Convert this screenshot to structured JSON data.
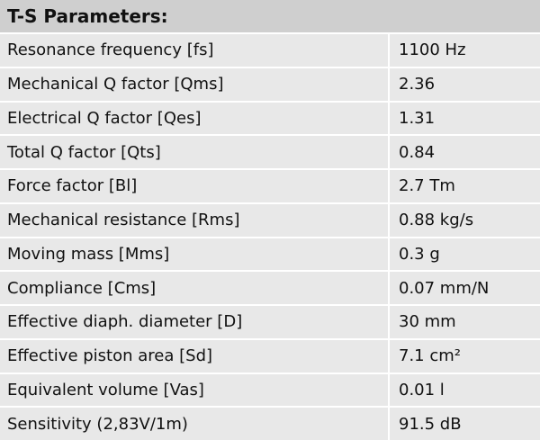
{
  "table": {
    "title": "T-S Parameters:",
    "rows": [
      [
        "Resonance frequency [fs]",
        "1100 Hz"
      ],
      [
        "Mechanical Q factor [Qms]",
        "2.36"
      ],
      [
        "Electrical Q factor [Qes]",
        "1.31"
      ],
      [
        "Total Q factor [Qts]",
        "0.84"
      ],
      [
        "Force factor [Bl]",
        "2.7 Tm"
      ],
      [
        "Mechanical resistance [Rms]",
        "0.88 kg/s"
      ],
      [
        "Moving mass [Mms]",
        "0.3 g"
      ],
      [
        "Compliance [Cms]",
        "0.07 mm/N"
      ],
      [
        "Effective diaph. diameter [D]",
        "30 mm"
      ],
      [
        "Effective piston area [Sd]",
        "7.1 cm²"
      ],
      [
        "Equivalent volume [Vas]",
        "0.01 l"
      ],
      [
        "Sensitivity (2,83V/1m)",
        "91.5 dB"
      ]
    ]
  }
}
